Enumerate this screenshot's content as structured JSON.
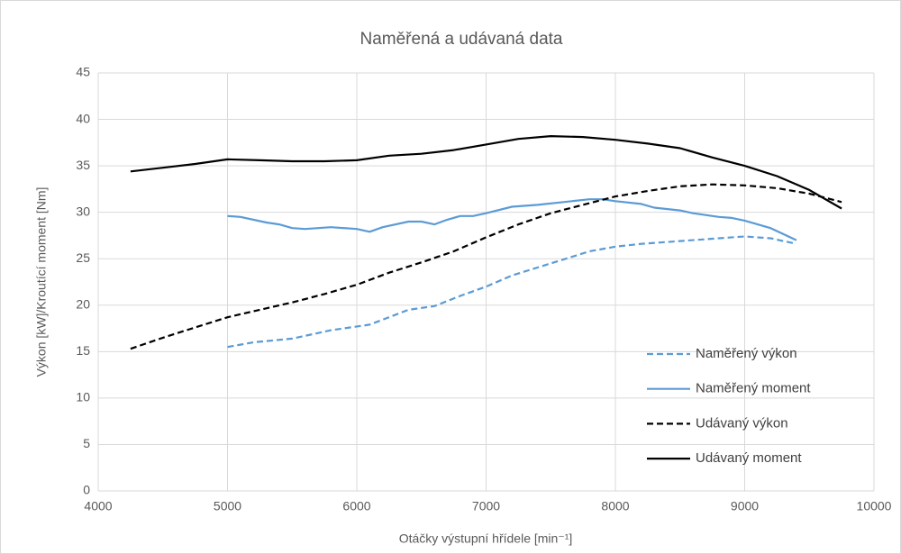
{
  "chart_data": {
    "type": "line",
    "title": "Naměřená a udávaná data",
    "x_label": "Otáčky výstupní hřídele [min⁻¹]",
    "y_label": "Výkon [kW]/Kroutící moment [Nm]",
    "xlim": [
      4000,
      10000
    ],
    "xticks": [
      4000,
      5000,
      6000,
      7000,
      8000,
      9000,
      10000
    ],
    "ylim": [
      0,
      45
    ],
    "yticks": [
      0,
      5,
      10,
      15,
      20,
      25,
      30,
      35,
      40,
      45
    ],
    "grid": true,
    "legend": "lower right",
    "series": [
      {
        "name": "Naměřený výkon",
        "color": "#5b9bd5",
        "style": "dashed",
        "x": [
          5000,
          5200,
          5500,
          5800,
          6100,
          6400,
          6600,
          6800,
          7000,
          7200,
          7500,
          7800,
          8000,
          8200,
          8500,
          8800,
          9000,
          9200,
          9400
        ],
        "values": [
          15.5,
          16.0,
          16.4,
          17.3,
          17.9,
          19.5,
          19.9,
          21.0,
          22.0,
          23.2,
          24.5,
          25.8,
          26.3,
          26.6,
          26.9,
          27.2,
          27.4,
          27.2,
          26.6
        ]
      },
      {
        "name": "Naměřený moment",
        "color": "#5b9bd5",
        "style": "solid",
        "x": [
          5000,
          5100,
          5300,
          5400,
          5500,
          5600,
          5800,
          6000,
          6100,
          6200,
          6400,
          6500,
          6600,
          6700,
          6800,
          6900,
          7000,
          7200,
          7400,
          7600,
          7800,
          7900,
          8000,
          8200,
          8300,
          8500,
          8600,
          8800,
          8900,
          9000,
          9200,
          9400
        ],
        "values": [
          29.6,
          29.5,
          28.9,
          28.7,
          28.3,
          28.2,
          28.4,
          28.2,
          27.9,
          28.4,
          29.0,
          29.0,
          28.7,
          29.2,
          29.6,
          29.6,
          29.9,
          30.6,
          30.8,
          31.1,
          31.4,
          31.4,
          31.2,
          30.9,
          30.5,
          30.2,
          29.9,
          29.5,
          29.4,
          29.1,
          28.3,
          27.0
        ]
      },
      {
        "name": "Udávaný výkon",
        "color": "#000000",
        "style": "dashed",
        "x": [
          4250,
          4500,
          4750,
          5000,
          5250,
          5500,
          5750,
          6000,
          6250,
          6500,
          6750,
          7000,
          7250,
          7500,
          7750,
          8000,
          8250,
          8500,
          8750,
          9000,
          9250,
          9500,
          9750
        ],
        "values": [
          15.3,
          16.5,
          17.6,
          18.7,
          19.5,
          20.3,
          21.2,
          22.2,
          23.5,
          24.6,
          25.8,
          27.3,
          28.7,
          29.9,
          30.8,
          31.7,
          32.3,
          32.8,
          33.0,
          32.9,
          32.6,
          32.0,
          31.1
        ]
      },
      {
        "name": "Udávaný moment",
        "color": "#000000",
        "style": "solid",
        "x": [
          4250,
          4500,
          4750,
          5000,
          5250,
          5500,
          5750,
          6000,
          6250,
          6500,
          6750,
          7000,
          7250,
          7500,
          7750,
          8000,
          8250,
          8500,
          8750,
          9000,
          9250,
          9500,
          9750
        ],
        "values": [
          34.4,
          34.8,
          35.2,
          35.7,
          35.6,
          35.5,
          35.5,
          35.6,
          36.1,
          36.3,
          36.7,
          37.3,
          37.9,
          38.2,
          38.1,
          37.8,
          37.4,
          36.9,
          35.9,
          35.0,
          33.9,
          32.4,
          30.4
        ]
      }
    ]
  }
}
